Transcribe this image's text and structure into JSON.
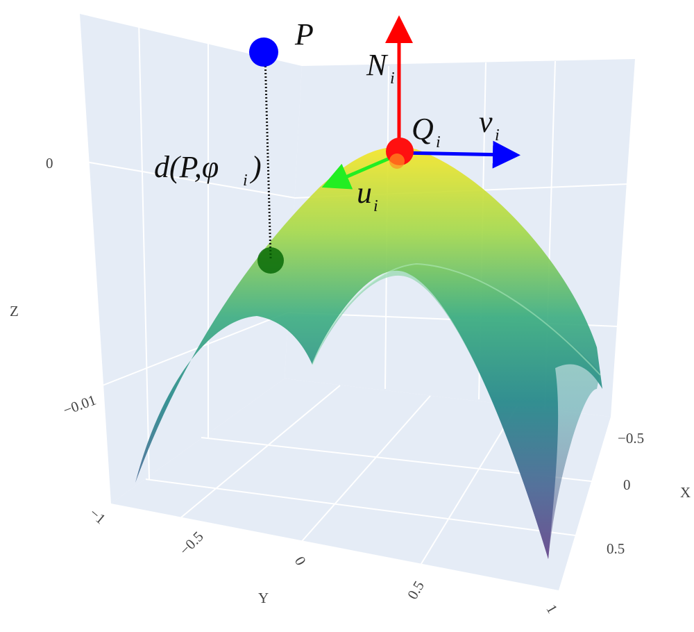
{
  "annotations": {
    "p": "P",
    "n": {
      "main": "N",
      "sub": "i"
    },
    "q": {
      "main": "Q",
      "sub": "i"
    },
    "v": {
      "main": "v",
      "sub": "i"
    },
    "u": {
      "main": "u",
      "sub": "i"
    },
    "d": {
      "main": "d(P,φ",
      "sub": "i",
      "end": ")"
    }
  },
  "axes": {
    "z": {
      "title": "Z",
      "ticks": [
        "0",
        "−0.01"
      ]
    },
    "y": {
      "title": "Y",
      "ticks": [
        "−1",
        "−0.5",
        "0",
        "0.5",
        "1"
      ]
    },
    "x": {
      "title": "X",
      "ticks": [
        "−0.5",
        "0",
        "0.5"
      ]
    }
  }
}
